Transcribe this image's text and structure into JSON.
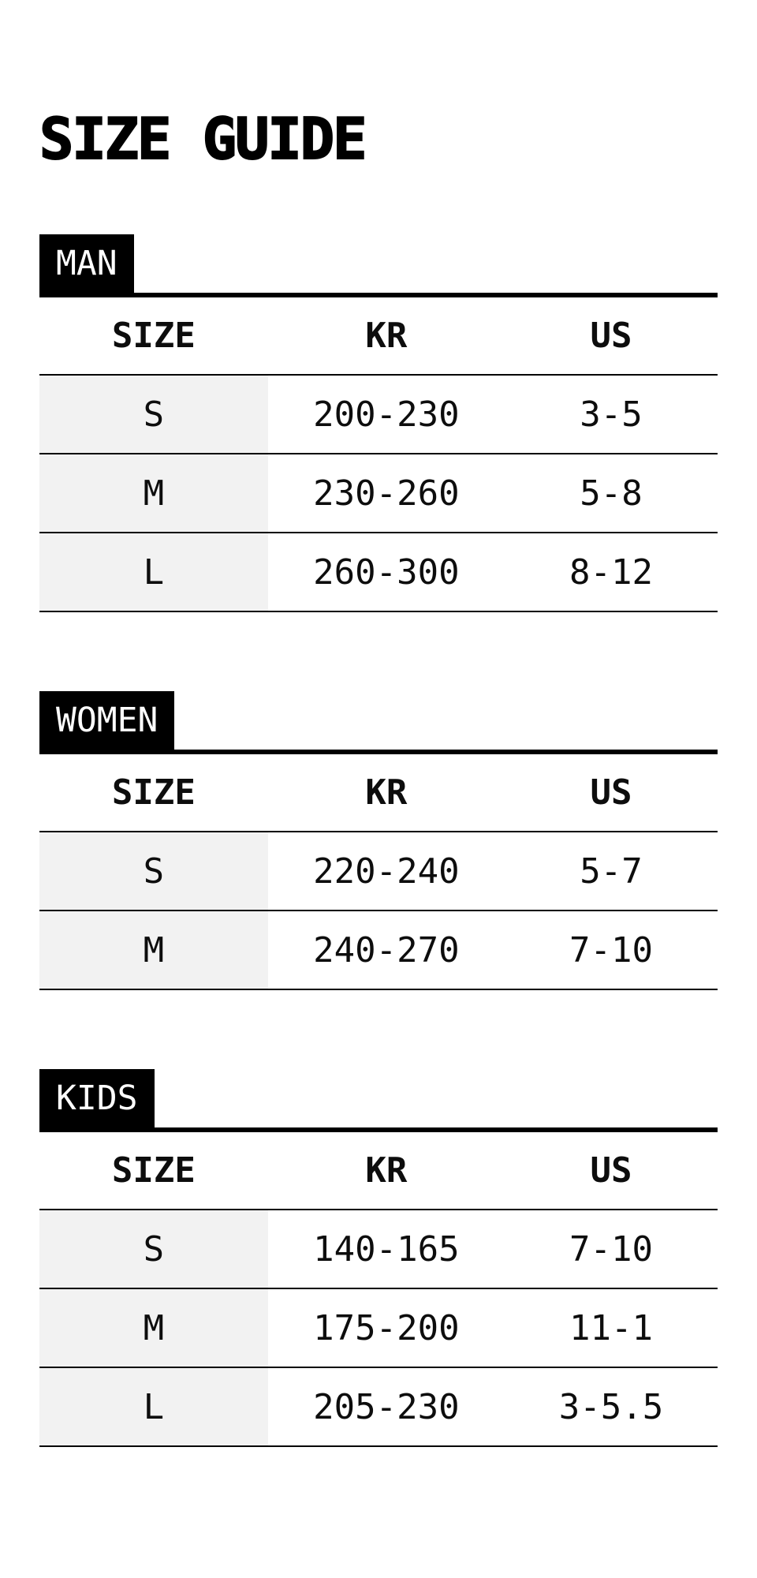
{
  "page": {
    "title": "SIZE GUIDE"
  },
  "colors": {
    "accent": "#000000",
    "label_text": "#ffffff",
    "first_column_bg": "#f2f2f2",
    "background": "#ffffff"
  },
  "sections": [
    {
      "label": "MAN",
      "headers": [
        "SIZE",
        "KR",
        "US"
      ],
      "rows": [
        [
          "S",
          "200-230",
          "3-5"
        ],
        [
          "M",
          "230-260",
          "5-8"
        ],
        [
          "L",
          "260-300",
          "8-12"
        ]
      ]
    },
    {
      "label": "WOMEN",
      "headers": [
        "SIZE",
        "KR",
        "US"
      ],
      "rows": [
        [
          "S",
          "220-240",
          "5-7"
        ],
        [
          "M",
          "240-270",
          "7-10"
        ]
      ]
    },
    {
      "label": "KIDS",
      "headers": [
        "SIZE",
        "KR",
        "US"
      ],
      "rows": [
        [
          "S",
          "140-165",
          "7-10"
        ],
        [
          "M",
          "175-200",
          "11-1"
        ],
        [
          "L",
          "205-230",
          "3-5.5"
        ]
      ]
    }
  ]
}
